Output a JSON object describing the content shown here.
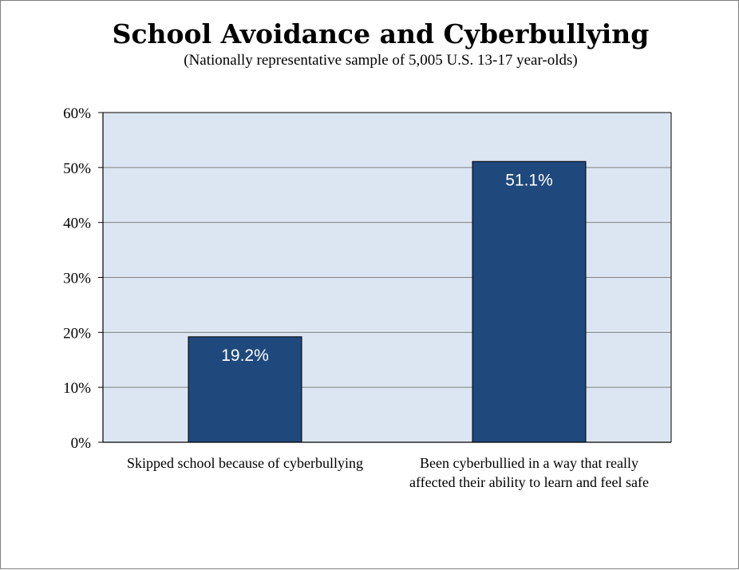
{
  "chart_data": {
    "type": "bar",
    "title": "School Avoidance and Cyberbullying",
    "subtitle": "(Nationally representative sample of 5,005 U.S. 13-17 year-olds)",
    "categories": [
      [
        "Skipped school because of cyberbullying"
      ],
      [
        "Been cyberbullied in a way that really",
        "affected their ability to learn and feel safe"
      ]
    ],
    "values": [
      19.2,
      51.1
    ],
    "value_labels": [
      "19.2%",
      "51.1%"
    ],
    "ylim": [
      0,
      60
    ],
    "yticks": [
      0,
      10,
      20,
      30,
      40,
      50,
      60
    ],
    "ytick_labels": [
      "0%",
      "10%",
      "20%",
      "30%",
      "40%",
      "50%",
      "60%"
    ],
    "grid": true,
    "legend": "none",
    "colors": {
      "bar": "#1f497d",
      "plot_background": "#dce6f2",
      "gridline": "#808080",
      "frame": "#7f7f7f"
    }
  }
}
